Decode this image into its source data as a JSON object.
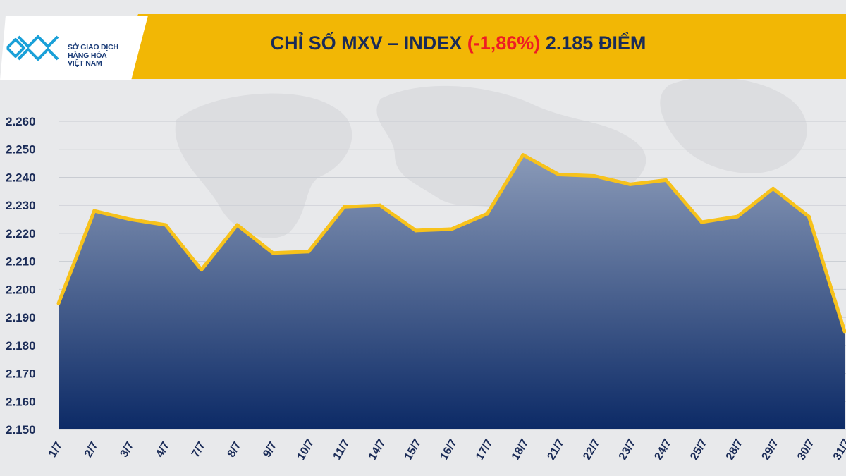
{
  "logo": {
    "icon": "mxv-chevron-logo",
    "line1": "SỞ GIAO DỊCH",
    "line2": "HÀNG HÓA",
    "line3": "VIỆT NAM"
  },
  "title": {
    "prefix": "CHỈ SỐ MXV – INDEX ",
    "change": "(-1,86%)",
    "suffix": " 2.185 ĐIỂM"
  },
  "colors": {
    "header": "#f2b705",
    "line": "#f7c21b",
    "area_top": "#8a9ab8",
    "area_bottom": "#0c2a66",
    "title": "#1a2b57",
    "change": "#ee1c24"
  },
  "chart_data": {
    "type": "area",
    "categories": [
      "1/7",
      "2/7",
      "3/7",
      "4/7",
      "7/7",
      "8/7",
      "9/7",
      "10/7",
      "11/7",
      "14/7",
      "15/7",
      "16/7",
      "17/7",
      "18/7",
      "21/7",
      "22/7",
      "23/7",
      "24/7",
      "25/7",
      "28/7",
      "29/7",
      "30/7",
      "31/7"
    ],
    "values": [
      2195,
      2228,
      2225,
      2223,
      2207,
      2223,
      2213,
      2213.5,
      2229.5,
      2230,
      2221,
      2221.5,
      2227,
      2248,
      2241,
      2240.5,
      2237.5,
      2239,
      2224,
      2226,
      2236,
      2226,
      2185
    ],
    "y_ticks": [
      "2.260",
      "2.250",
      "2.240",
      "2.230",
      "2.220",
      "2.210",
      "2.200",
      "2.190",
      "2.180",
      "2.170",
      "2.160",
      "2.150"
    ],
    "ylim": [
      2150,
      2260
    ],
    "grid": true
  }
}
